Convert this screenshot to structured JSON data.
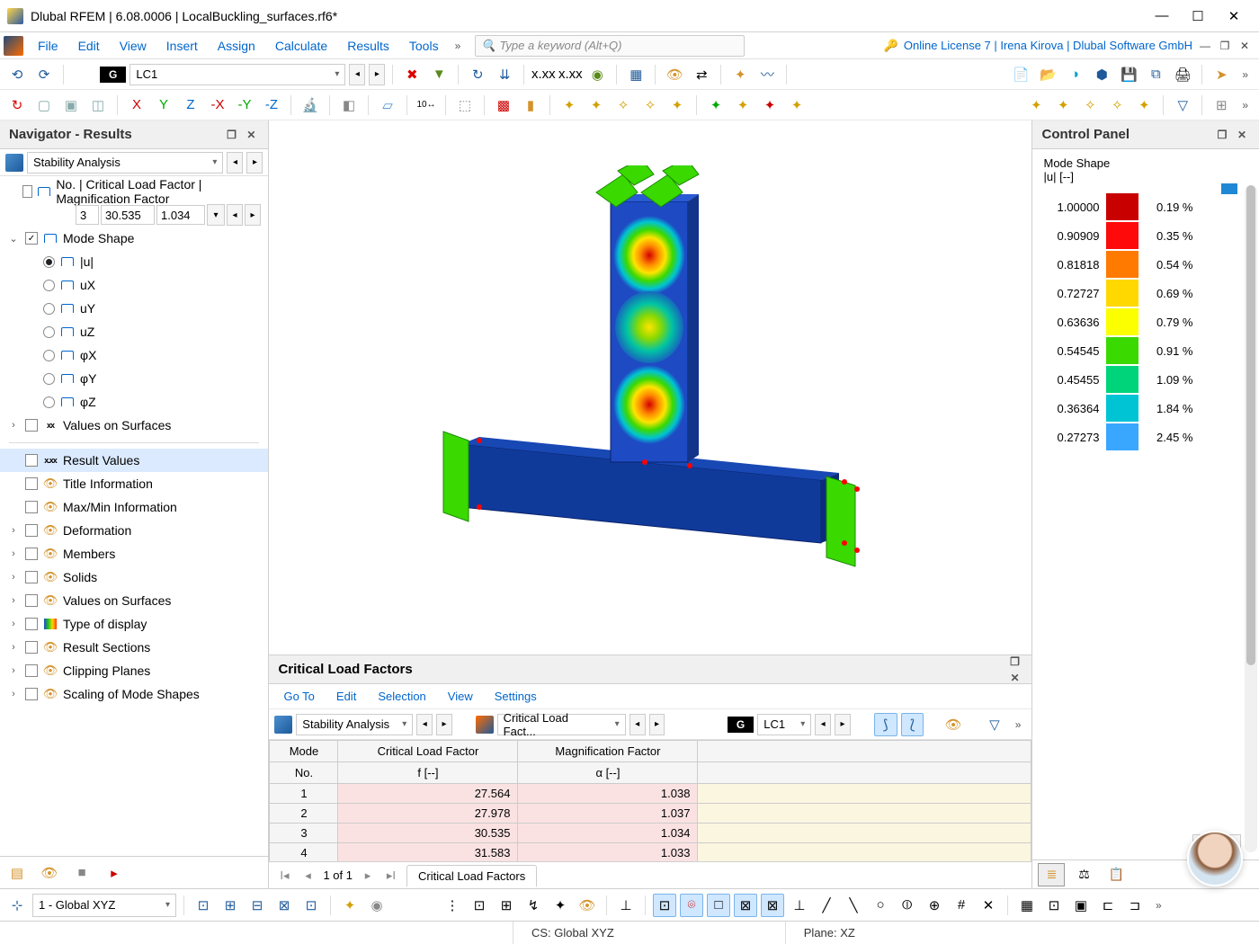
{
  "titlebar": {
    "app": "Dlubal RFEM",
    "version": "6.08.0006",
    "file": "LocalBuckling_surfaces.rf6*"
  },
  "menubar": {
    "items": [
      "File",
      "Edit",
      "View",
      "Insert",
      "Assign",
      "Calculate",
      "Results",
      "Tools"
    ],
    "search_placeholder": "Type a keyword (Alt+Q)",
    "license": "Online License 7 | Irena Kirova | Dlubal Software GmbH"
  },
  "toolbar1": {
    "g_label": "G",
    "lc_label": "LC1"
  },
  "navigator": {
    "title": "Navigator - Results",
    "analysis_type": "Stability Analysis",
    "critical_factor_header": "No. | Critical Load Factor | Magnification Factor",
    "mode_no": "3",
    "crit_factor": "30.535",
    "mag_factor": "1.034",
    "mode_shape_label": "Mode Shape",
    "mode_components": [
      "|u|",
      "uX",
      "uY",
      "uZ",
      "φX",
      "φY",
      "φZ"
    ],
    "values_surfaces": "Values on Surfaces",
    "display_items": [
      "Result Values",
      "Title Information",
      "Max/Min Information",
      "Deformation",
      "Members",
      "Solids",
      "Values on Surfaces",
      "Type of display",
      "Result Sections",
      "Clipping Planes",
      "Scaling of Mode Shapes"
    ]
  },
  "control_panel": {
    "title": "Control Panel",
    "quantity": "Mode Shape",
    "unit": "|u| [--]",
    "legend": [
      {
        "val": "1.00000",
        "color": "#c80000",
        "pct": "0.19 %"
      },
      {
        "val": "0.90909",
        "color": "#ff0a0a",
        "pct": "0.35 %"
      },
      {
        "val": "0.81818",
        "color": "#ff7a00",
        "pct": "0.54 %"
      },
      {
        "val": "0.72727",
        "color": "#ffd800",
        "pct": "0.69 %"
      },
      {
        "val": "0.63636",
        "color": "#fbff00",
        "pct": "0.79 %"
      },
      {
        "val": "0.54545",
        "color": "#3ad900",
        "pct": "0.91 %"
      },
      {
        "val": "0.45455",
        "color": "#00d47a",
        "pct": "1.09 %"
      },
      {
        "val": "0.36364",
        "color": "#00c4d4",
        "pct": "1.84 %"
      },
      {
        "val": "0.27273",
        "color": "#3aa7ff",
        "pct": "2.45 %"
      }
    ]
  },
  "bottom_dock": {
    "title": "Critical Load Factors",
    "menu": [
      "Go To",
      "Edit",
      "Selection",
      "View",
      "Settings"
    ],
    "sel1": "Stability Analysis",
    "sel2": "Critical Load Fact...",
    "lc": "LC1",
    "columns": [
      {
        "h1": "Mode",
        "h2": "No."
      },
      {
        "h1": "Critical Load Factor",
        "h2": "f [--]"
      },
      {
        "h1": "Magnification Factor",
        "h2": "α [--]"
      }
    ],
    "rows": [
      {
        "no": "1",
        "f": "27.564",
        "a": "1.038"
      },
      {
        "no": "2",
        "f": "27.978",
        "a": "1.037"
      },
      {
        "no": "3",
        "f": "30.535",
        "a": "1.034"
      },
      {
        "no": "4",
        "f": "31.583",
        "a": "1.033"
      }
    ],
    "nav_page": "1 of 1",
    "tab_label": "Critical Load Factors"
  },
  "bottom_tb": {
    "coord_sys": "1 - Global XYZ"
  },
  "statusbar": {
    "cs": "CS: Global XYZ",
    "plane": "Plane: XZ"
  }
}
